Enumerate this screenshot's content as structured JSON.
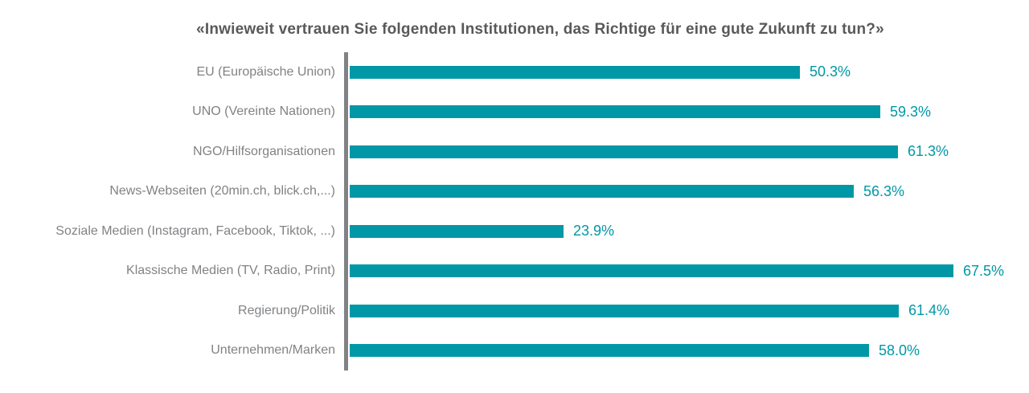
{
  "title": "«Inwieweit vertrauen Sie folgenden Institutionen, das Richtige für eine gute Zukunft zu tun?»",
  "chart_data": {
    "type": "bar",
    "orientation": "horizontal",
    "title": "«Inwieweit vertrauen Sie folgenden Institutionen, das Richtige für eine gute Zukunft zu tun?»",
    "categories": [
      "EU (Europäische Union)",
      "UNO (Vereinte Nationen)",
      "NGO/Hilfsorganisationen",
      "News-Webseiten (20min.ch, blick.ch,...)",
      "Soziale Medien (Instagram, Facebook, Tiktok, ...)",
      "Klassische Medien (TV, Radio, Print)",
      "Regierung/Politik",
      "Unternehmen/Marken"
    ],
    "values": [
      50.3,
      59.3,
      61.3,
      56.3,
      23.9,
      67.5,
      61.4,
      58.0
    ],
    "value_labels": [
      "50.3%",
      "59.3%",
      "61.3%",
      "56.3%",
      "23.9%",
      "67.5%",
      "61.4%",
      "58.0%"
    ],
    "xlabel": "",
    "ylabel": "",
    "xlim": [
      0,
      73.2
    ],
    "grid": false,
    "legend": false,
    "colors": {
      "bar": "#0098A6",
      "value_label": "#0098A6",
      "category_label": "#808285",
      "axis_line": "#808285",
      "title": "#58595B",
      "background": "#FFFFFF"
    }
  }
}
